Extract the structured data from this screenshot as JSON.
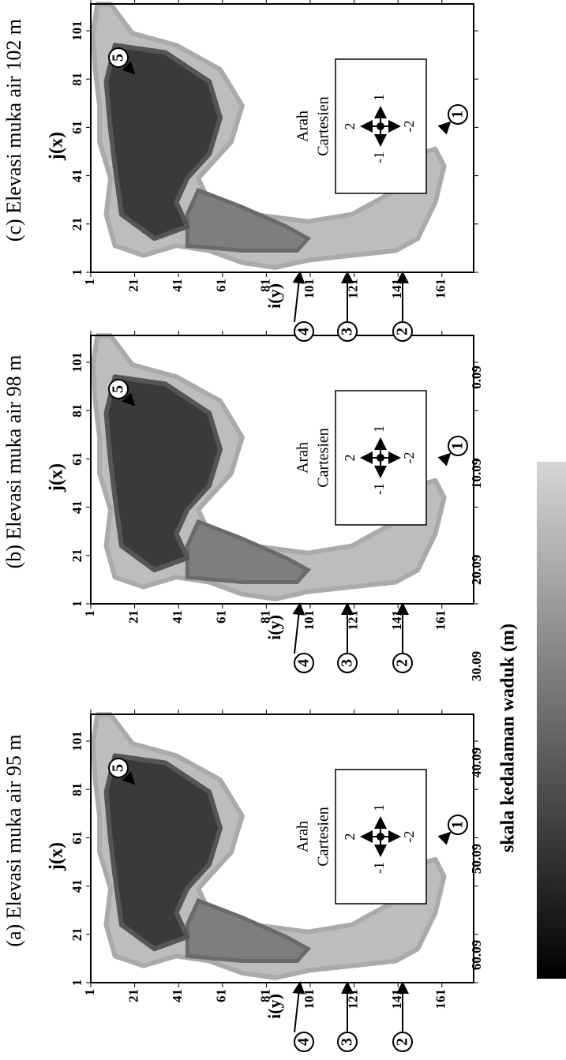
{
  "panels": [
    {
      "title": "(a) Elevasi muka air 95 m",
      "x_label": "j(x)",
      "y_label": "i(y)",
      "xticks": [
        "1",
        "21",
        "41",
        "61",
        "81",
        "101"
      ],
      "yticks": [
        "1",
        "21",
        "41",
        "61",
        "81",
        "101",
        "121",
        "141",
        "161"
      ],
      "markers": [
        "1",
        "2",
        "3",
        "4",
        "5"
      ],
      "legend": {
        "lines": [
          "Arah",
          "Cartesien"
        ],
        "up": "2",
        "down": "-2",
        "left": "-1",
        "right": "1"
      }
    },
    {
      "title": "(b) Elevasi muka air 98 m",
      "x_label": "j(x)",
      "y_label": "i(y)",
      "xticks": [
        "1",
        "21",
        "41",
        "61",
        "81",
        "101"
      ],
      "yticks": [
        "1",
        "21",
        "41",
        "61",
        "81",
        "101",
        "121",
        "141",
        "161"
      ],
      "markers": [
        "1",
        "2",
        "3",
        "4",
        "5"
      ],
      "legend": {
        "lines": [
          "Arah",
          "Cartesien"
        ],
        "up": "2",
        "down": "-2",
        "left": "-1",
        "right": "1"
      }
    },
    {
      "title": "(c) Elevasi muka air 102 m",
      "x_label": "j(x)",
      "y_label": "i(y)",
      "xticks": [
        "1",
        "21",
        "41",
        "61",
        "81",
        "101"
      ],
      "yticks": [
        "1",
        "21",
        "41",
        "61",
        "81",
        "101",
        "121",
        "141",
        "161"
      ],
      "markers": [
        "1",
        "2",
        "3",
        "4",
        "5"
      ],
      "legend": {
        "lines": [
          "Arah",
          "Cartesien"
        ],
        "up": "2",
        "down": "-2",
        "left": "-1",
        "right": "1"
      }
    }
  ],
  "colorbar": {
    "title": "skala kedalaman waduk (m)",
    "ticks": [
      "60.09",
      "50.09",
      "40.09",
      "30.09",
      "20.09",
      "10.09",
      "0.09"
    ]
  }
}
